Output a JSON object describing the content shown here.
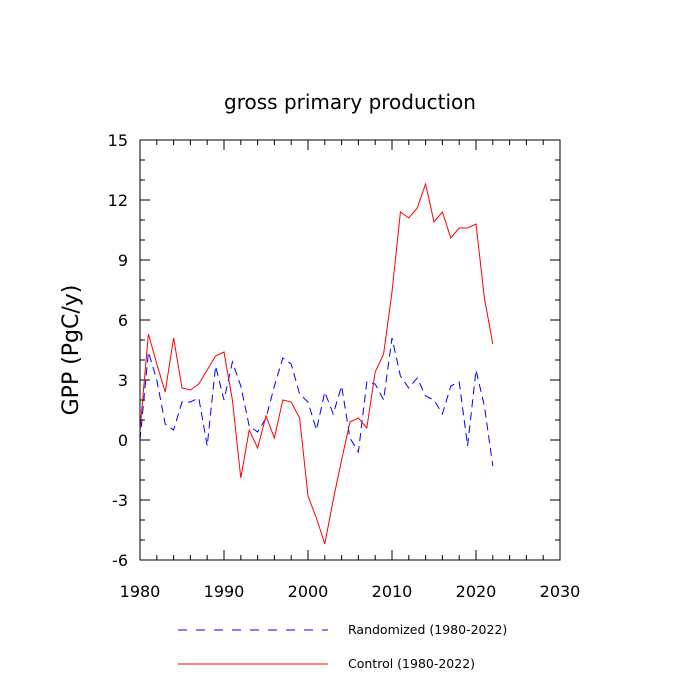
{
  "chart_data": {
    "type": "line",
    "title": "gross primary production",
    "xlabel": "",
    "ylabel": "GPP  (PgC/y)",
    "xlim": [
      1980,
      2030
    ],
    "ylim": [
      -6,
      15
    ],
    "xticks": [
      1980,
      1990,
      2000,
      2010,
      2020,
      2030
    ],
    "yticks": [
      -6,
      -3,
      0,
      3,
      6,
      9,
      12,
      15
    ],
    "x": [
      1980,
      1981,
      1982,
      1983,
      1984,
      1985,
      1986,
      1987,
      1988,
      1989,
      1990,
      1991,
      1992,
      1993,
      1994,
      1995,
      1996,
      1997,
      1998,
      1999,
      2000,
      2001,
      2002,
      2003,
      2004,
      2005,
      2006,
      2007,
      2008,
      2009,
      2010,
      2011,
      2012,
      2013,
      2014,
      2015,
      2016,
      2017,
      2018,
      2019,
      2020,
      2021,
      2022
    ],
    "series": [
      {
        "name": "Randomized (1980-2022)",
        "color": "#0000ff",
        "dash": "dashed",
        "values": [
          0.0,
          4.4,
          3.0,
          0.8,
          0.5,
          1.9,
          1.9,
          2.1,
          -0.3,
          3.7,
          2.0,
          3.9,
          2.7,
          0.7,
          0.4,
          1.1,
          2.7,
          4.1,
          3.8,
          2.3,
          1.9,
          0.5,
          2.4,
          1.3,
          2.7,
          0.1,
          -0.6,
          2.9,
          2.8,
          2.0,
          5.1,
          3.2,
          2.6,
          3.1,
          2.2,
          2.0,
          1.3,
          2.7,
          2.9,
          -0.3,
          3.5,
          1.7,
          -1.3
        ]
      },
      {
        "name": "Control (1980-2022)",
        "color": "#ff0000",
        "dash": "solid",
        "values": [
          0.5,
          5.3,
          3.8,
          2.4,
          5.1,
          2.6,
          2.5,
          2.8,
          3.5,
          4.2,
          4.4,
          2.0,
          -1.9,
          0.5,
          -0.4,
          1.2,
          0.1,
          2.0,
          1.9,
          1.1,
          -2.8,
          -3.9,
          -5.2,
          -3.0,
          -1.0,
          0.9,
          1.1,
          0.6,
          3.4,
          4.3,
          7.4,
          11.4,
          11.1,
          11.6,
          12.8,
          10.9,
          11.4,
          10.1,
          10.6,
          10.6,
          10.8,
          7.1,
          4.8
        ]
      }
    ],
    "legend": [
      {
        "label": "Randomized (1980-2022)"
      },
      {
        "label": "Control (1980-2022)"
      }
    ]
  }
}
